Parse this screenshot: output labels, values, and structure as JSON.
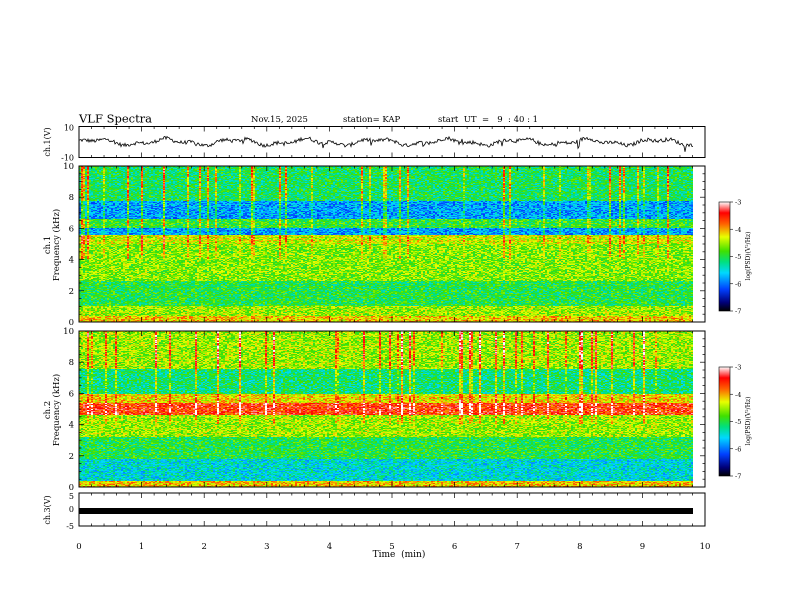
{
  "header": {
    "title": "VLF Spectra",
    "date": "Nov.15, 2025",
    "station": "station= KAP",
    "start": "start  UT  =   9  : 40 : 1"
  },
  "chart_data": [
    {
      "type": "line",
      "panel": "ch1-waveform",
      "ylabel": "ch.1(V)",
      "xlim": [
        0,
        10
      ],
      "ylim": [
        -10,
        10
      ],
      "ytick_labels": [
        "-10",
        "10"
      ],
      "description_values": {
        "approx_range_V": [
          -3,
          3
        ]
      }
    },
    {
      "type": "heatmap",
      "panel": "ch1-spectrogram",
      "ylabel": "ch.1",
      "ylabel2": "Frequency  (kHz)",
      "xlim": [
        0,
        9.83
      ],
      "ylim": [
        0,
        10
      ],
      "ytick_labels": [
        "0",
        "2",
        "4",
        "6",
        "8",
        "10"
      ],
      "colorbar": {
        "label": "log(PSD)(V²/Hz)",
        "range": [
          -7,
          -3
        ],
        "tick_labels": [
          "-3",
          "-4",
          "-5",
          "-6",
          "-7"
        ]
      }
    },
    {
      "type": "heatmap",
      "panel": "ch2-spectrogram",
      "ylabel": "ch.2",
      "ylabel2": "Frequency  (kHz)",
      "xlim": [
        0,
        9.83
      ],
      "ylim": [
        0,
        10
      ],
      "ytick_labels": [
        "0",
        "2",
        "4",
        "6",
        "8",
        "10"
      ],
      "colorbar": {
        "label": "log(PSD)(V²/Hz)",
        "range": [
          -7,
          -3
        ],
        "tick_labels": [
          "-3",
          "-4",
          "-5",
          "-6",
          "-7"
        ]
      }
    },
    {
      "type": "line",
      "panel": "ch3-waveform",
      "ylabel": "ch.3(V)",
      "xlim": [
        0,
        10
      ],
      "ylim": [
        -5,
        5
      ],
      "ytick_labels": [
        "-5",
        "0",
        "5"
      ],
      "description_values": {
        "approx_level_V": -0.3
      }
    }
  ],
  "xaxis": {
    "label": "Time  (min)",
    "tick_labels": [
      "0",
      "1",
      "2",
      "3",
      "4",
      "5",
      "6",
      "7",
      "8",
      "9",
      "10"
    ],
    "range": [
      0,
      10
    ]
  }
}
